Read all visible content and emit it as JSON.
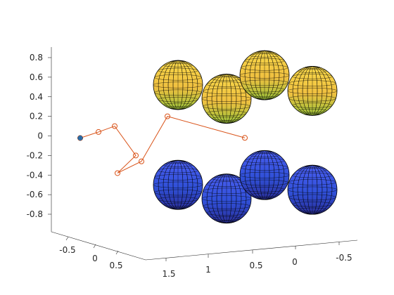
{
  "chart_data": {
    "type": "scatter",
    "title": "",
    "xlabel": "",
    "ylabel": "",
    "zlabel": "",
    "axes": {
      "z": {
        "ticks": [
          "0.8",
          "0.6",
          "0.4",
          "0.2",
          "0",
          "-0.2",
          "-0.4",
          "-0.6",
          "-0.8"
        ],
        "range": [
          -0.9,
          0.9
        ]
      },
      "left": {
        "ticks": [
          "-0.5",
          "0",
          "0.5"
        ]
      },
      "bottom": {
        "ticks": [
          "1.5",
          "1",
          "0.5",
          "0",
          "-0.5"
        ]
      },
      "grid": false,
      "view": "3d"
    },
    "colors": {
      "path": "#d95319",
      "sphere_top": "#f0c040",
      "sphere_bottom": "#3050d8",
      "mesh": "#000000",
      "start_marker": "#3a86c8"
    },
    "series": [
      {
        "kind": "path",
        "marker": "o",
        "points": [
          {
            "z": 0.0
          },
          {
            "z": 0.04
          },
          {
            "z": 0.1
          },
          {
            "z": -0.2
          },
          {
            "z": -0.38
          },
          {
            "z": -0.26
          },
          {
            "z": 0.2
          },
          {
            "z": -0.02
          }
        ]
      },
      {
        "kind": "spheres",
        "group": "top",
        "centers_z": [
          0.52,
          0.38,
          0.62,
          0.46
        ]
      },
      {
        "kind": "spheres",
        "group": "bottom",
        "centers_z": [
          -0.5,
          -0.64,
          -0.4,
          -0.55
        ]
      }
    ]
  }
}
